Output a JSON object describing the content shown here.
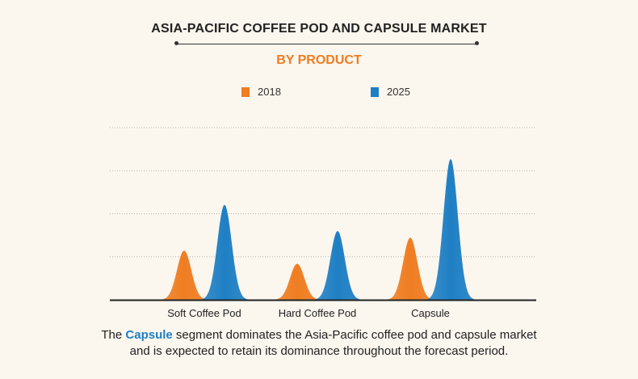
{
  "header": {
    "title": "ASIA-PACIFIC COFFEE POD AND CAPSULE MARKET",
    "subtitle": "BY PRODUCT",
    "subtitle_color": "#ef7d22"
  },
  "caption": {
    "prefix": "The ",
    "highlight": "Capsule",
    "line1_rest": " segment dominates the Asia-Pacific coffee pod and capsule market",
    "line2": "and is expected to retain its dominance throughout the forecast period."
  },
  "chart_data": {
    "type": "area",
    "categories": [
      "Soft Coffee Pod",
      "Hard Coffee Pod",
      "Capsule"
    ],
    "series": [
      {
        "name": "2018",
        "color": "#ef7d22",
        "values": [
          30,
          22,
          38
        ]
      },
      {
        "name": "2025",
        "color": "#1f7fc4",
        "values": [
          58,
          42,
          86
        ]
      }
    ],
    "ylim": [
      0,
      105
    ],
    "grid": true,
    "legend_position": "top-center"
  }
}
